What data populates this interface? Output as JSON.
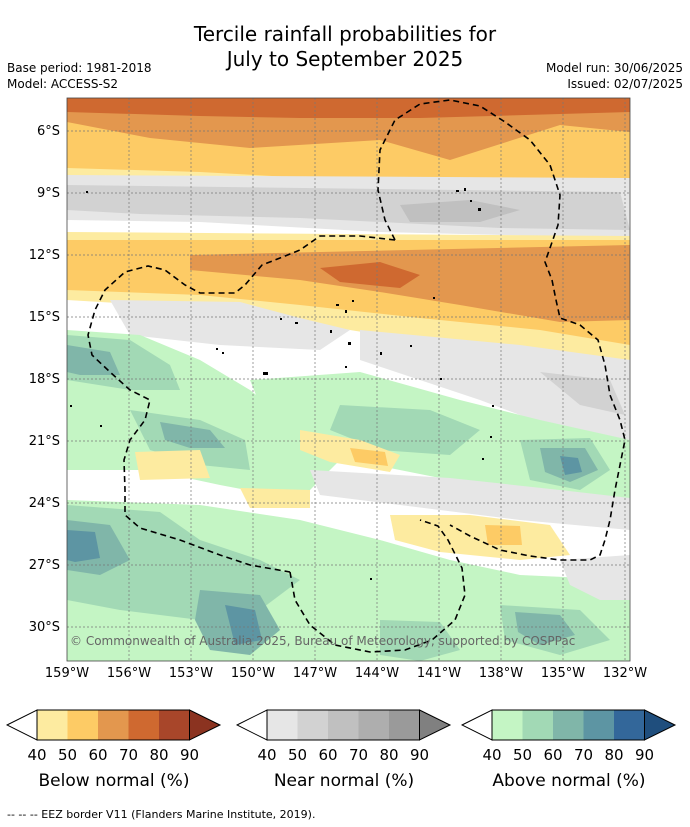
{
  "title": {
    "line1": "Tercile rainfall probabilities for",
    "line2": "July to September 2025"
  },
  "meta": {
    "base_period": "Base period: 1981-2018",
    "model": "Model: ACCESS-S2",
    "model_run": "Model run: 30/06/2025",
    "issued": "Issued: 02/07/2025"
  },
  "map": {
    "lat_labels": [
      "6°S",
      "9°S",
      "12°S",
      "15°S",
      "18°S",
      "21°S",
      "24°S",
      "27°S",
      "30°S"
    ],
    "lon_labels": [
      "159°W",
      "156°W",
      "153°W",
      "150°W",
      "147°W",
      "144°W",
      "141°W",
      "138°W",
      "135°W",
      "132°W"
    ],
    "copyright": "© Commonwealth of Australia 2025, Bureau of Meteorology, supported by COSPPac",
    "colors": {
      "below": [
        "#fdeba0",
        "#fdcb65",
        "#e3974e",
        "#cf6930",
        "#a8462a"
      ],
      "near": [
        "#e6e6e6",
        "#d2d2d2",
        "#c0c0c0",
        "#aeaeae",
        "#9a9a9a"
      ],
      "above": [
        "#c4f5c4",
        "#a2d9b5",
        "#80b6a9",
        "#5d95a3",
        "#33679a"
      ]
    }
  },
  "legends": [
    {
      "label": "Below normal (%)",
      "ticks": [
        "40",
        "50",
        "60",
        "70",
        "80",
        "90"
      ],
      "colors": [
        "#fdeba0",
        "#fdcb65",
        "#e3974e",
        "#cf6930",
        "#a8462a",
        "#8b3320"
      ]
    },
    {
      "label": "Near normal (%)",
      "ticks": [
        "40",
        "50",
        "60",
        "70",
        "80",
        "90"
      ],
      "colors": [
        "#e6e6e6",
        "#d2d2d2",
        "#c0c0c0",
        "#aeaeae",
        "#9a9a9a",
        "#808080"
      ]
    },
    {
      "label": "Above normal (%)",
      "ticks": [
        "40",
        "50",
        "60",
        "70",
        "80",
        "90"
      ],
      "colors": [
        "#c4f5c4",
        "#a2d9b5",
        "#80b6a9",
        "#5d95a3",
        "#33679a",
        "#1f4e7d"
      ]
    }
  ],
  "footnote": "--  --  -- EEZ border V11 (Flanders Marine Institute, 2019)."
}
